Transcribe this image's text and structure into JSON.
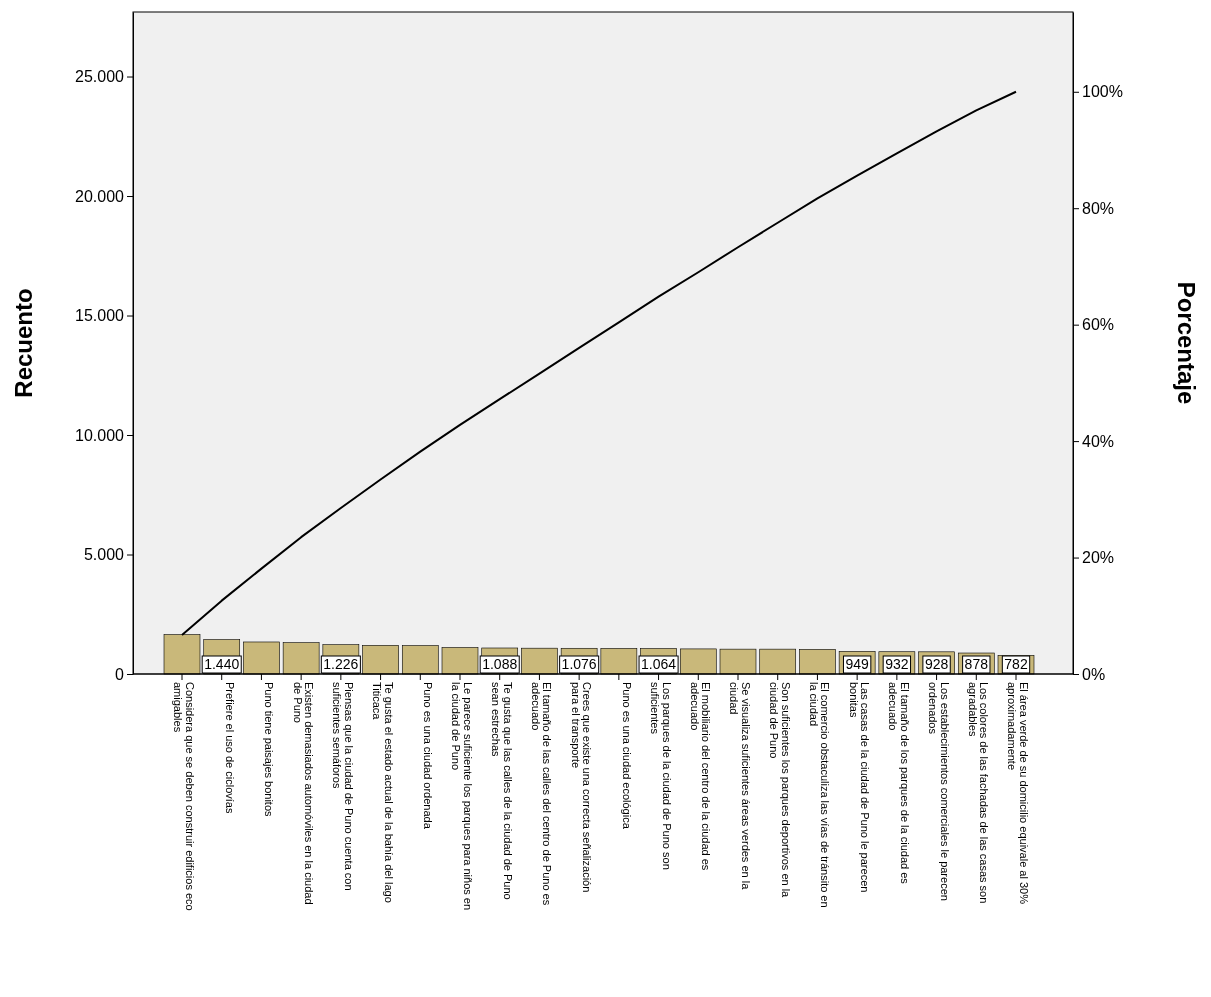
{
  "chart_data": {
    "type": "bar",
    "ylabel": "Recuento",
    "y2label": "Porcentaje",
    "categories": [
      "Considera que se deben construir edificios eco amigables",
      "Prefiere el uso de ciclovías",
      "Puno tiene paisajes bonitos",
      "Existen demasiados automóviles en la ciudad de Puno",
      "Piensas que la ciudad de Puno cuenta con suficientes semáforos",
      "Te gusta el estado actual de la bahía del lago Titicaca",
      "Puno es una ciudad ordenada",
      "Le parece suficiente los parques para niños en la ciudad de Puno",
      "Te gusta que las calles de la ciudad de Puno sean estrechas",
      "El tamaño de las calles del centro de Puno es adecuado",
      "Crees que existe una correcta señalización para el transporte",
      "Puno es una ciudad ecológica",
      "Los parques de la ciudad de Puno son suficientes",
      "El mobiliario del centro de la ciudad es adecuado",
      "Se visualiza suficientes áreas verdes en la ciudad",
      "Son suficientes los parques deportivos en la ciudad de Puno",
      "El comercio obstaculiza las vías de tránsito en la ciudad",
      "Las casas de la ciudad de Puno le parecen bonitas",
      "El tamaño de los parques de la ciudad es adecuado",
      "Los establecimientos comerciales le parecen ordenados",
      "Los colores de las fachadas de las casas son agradables",
      "El área verde de su domicilio equivale al 30% aproximadamente"
    ],
    "series": [
      {
        "color": "#c9b87a",
        "values": [
          1650,
          1440,
          1340,
          1310,
          1226,
          1200,
          1190,
          1110,
          1088,
          1080,
          1076,
          1070,
          1064,
          1050,
          1040,
          1040,
          1030,
          949,
          932,
          928,
          878,
          782
        ],
        "value_labels": [
          null,
          "1.440",
          null,
          null,
          "1.226",
          null,
          null,
          null,
          "1.088",
          null,
          "1.076",
          null,
          "1.064",
          null,
          null,
          null,
          null,
          "949",
          "932",
          "928",
          "878",
          "782"
        ]
      },
      {
        "type": "line",
        "axis": "y2",
        "color": "#000000",
        "values": [
          6.7,
          12.6,
          18.1,
          23.5,
          28.5,
          33.4,
          38.2,
          42.8,
          47.2,
          51.6,
          56.0,
          60.4,
          64.8,
          69.0,
          73.3,
          77.5,
          81.7,
          85.6,
          89.4,
          93.2,
          96.8,
          100
        ]
      }
    ],
    "ylim": [
      0,
      27700
    ],
    "yticks": [
      0,
      {
        "value": 5000,
        "label": "5.000"
      },
      {
        "value": 10000,
        "label": "10.000"
      },
      {
        "value": 15000,
        "label": "15.000"
      },
      {
        "value": 20000,
        "label": "20.000"
      },
      {
        "value": 25000,
        "label": "25.000"
      }
    ],
    "y2lim": [
      0,
      113.7
    ],
    "y2ticks": [
      {
        "value": 0,
        "label": "0%"
      },
      {
        "value": 20,
        "label": "20%"
      },
      {
        "value": 40,
        "label": "40%"
      },
      {
        "value": 60,
        "label": "60%"
      },
      {
        "value": 80,
        "label": "80%"
      },
      {
        "value": 100,
        "label": "100%"
      }
    ],
    "grid": false,
    "marker": "none"
  }
}
